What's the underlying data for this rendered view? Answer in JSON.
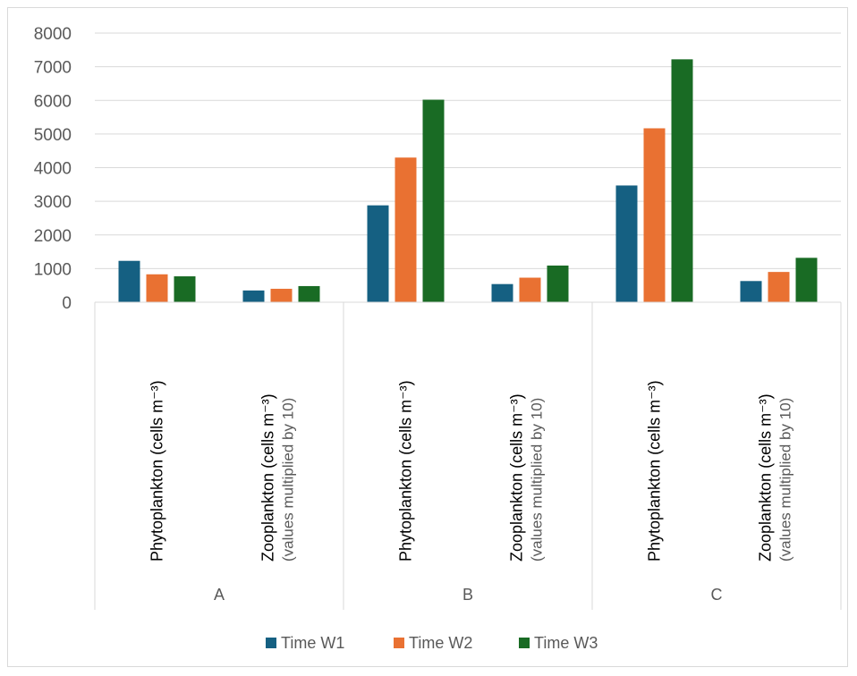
{
  "chart_data": {
    "type": "bar",
    "groups": [
      "A",
      "B",
      "C"
    ],
    "categories": [
      {
        "group": "A",
        "line1": "Phytoplankton (cells m⁻³)",
        "line2": ""
      },
      {
        "group": "A",
        "line1": "Zooplankton (cells m⁻³)",
        "line2": "(values multiplied by 10)"
      },
      {
        "group": "B",
        "line1": "Phytoplankton (cells m⁻³)",
        "line2": ""
      },
      {
        "group": "B",
        "line1": "Zooplankton (cells m⁻³)",
        "line2": "(values multiplied by 10)"
      },
      {
        "group": "C",
        "line1": "Phytoplankton (cells m⁻³)",
        "line2": ""
      },
      {
        "group": "C",
        "line1": "Zooplankton (cells m⁻³)",
        "line2": "(values multiplied by 10)"
      }
    ],
    "series": [
      {
        "name": "Time W1",
        "color": "#156082",
        "values": [
          1230,
          350,
          2880,
          540,
          3470,
          630
        ]
      },
      {
        "name": "Time W2",
        "color": "#e97132",
        "values": [
          830,
          400,
          4300,
          730,
          5170,
          900
        ]
      },
      {
        "name": "Time W3",
        "color": "#196b24",
        "values": [
          770,
          480,
          6020,
          1090,
          7220,
          1320
        ]
      }
    ],
    "yticks": [
      "0",
      "1000",
      "2000",
      "3000",
      "4000",
      "5000",
      "6000",
      "7000",
      "8000"
    ],
    "ylim": [
      0,
      8000
    ],
    "grid": true,
    "legend": "bottom",
    "title": "",
    "xlabel": "",
    "ylabel": ""
  }
}
